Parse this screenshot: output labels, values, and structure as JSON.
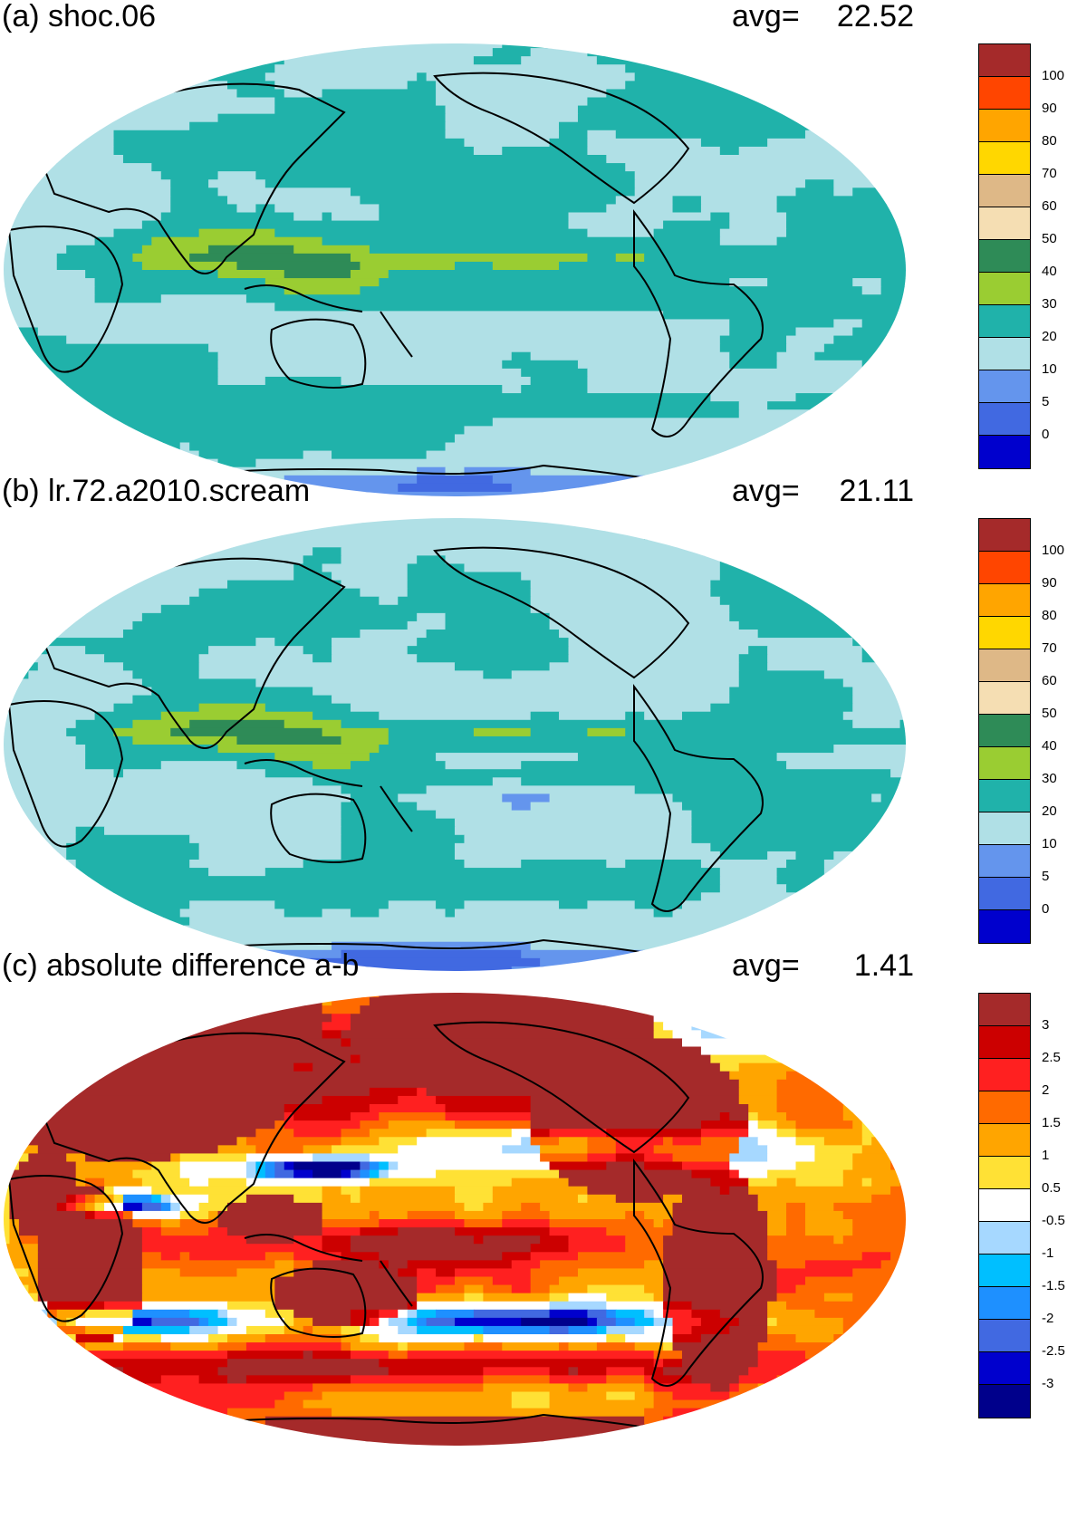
{
  "panels": [
    {
      "id": "a",
      "title": "(a) shoc.06",
      "avg_label": "avg=",
      "avg_value": "22.52",
      "scheme": "seq",
      "colorbar": {
        "labels": [
          "100",
          "90",
          "80",
          "70",
          "60",
          "50",
          "40",
          "30",
          "20",
          "10",
          "5",
          "0"
        ],
        "colors": [
          "#a52a2a",
          "#ff4500",
          "#ffa500",
          "#ffd700",
          "#deb887",
          "#f5deb3",
          "#2e8b57",
          "#9acd32",
          "#20b2aa",
          "#b0e0e6",
          "#6495ed",
          "#4169e1",
          "#0000cd"
        ]
      }
    },
    {
      "id": "b",
      "title": "(b) lr.72.a2010.scream",
      "avg_label": "avg=",
      "avg_value": "21.11",
      "scheme": "seq",
      "colorbar": {
        "labels": [
          "100",
          "90",
          "80",
          "70",
          "60",
          "50",
          "40",
          "30",
          "20",
          "10",
          "5",
          "0"
        ],
        "colors": [
          "#a52a2a",
          "#ff4500",
          "#ffa500",
          "#ffd700",
          "#deb887",
          "#f5deb3",
          "#2e8b57",
          "#9acd32",
          "#20b2aa",
          "#b0e0e6",
          "#6495ed",
          "#4169e1",
          "#0000cd"
        ]
      }
    },
    {
      "id": "c",
      "title": "(c) absolute difference a-b",
      "avg_label": "avg=",
      "avg_value": "1.41",
      "scheme": "div",
      "colorbar": {
        "labels": [
          "3",
          "2.5",
          "2",
          "1.5",
          "1",
          "0.5",
          "-0.5",
          "-1",
          "-1.5",
          "-2",
          "-2.5",
          "-3"
        ],
        "colors": [
          "#a52a2a",
          "#cc0000",
          "#ff2020",
          "#ff6a00",
          "#ffa500",
          "#ffe135",
          "#ffffff",
          "#a6d8ff",
          "#00bfff",
          "#1e90ff",
          "#4169e1",
          "#0000cd",
          "#00008b"
        ]
      }
    }
  ]
}
